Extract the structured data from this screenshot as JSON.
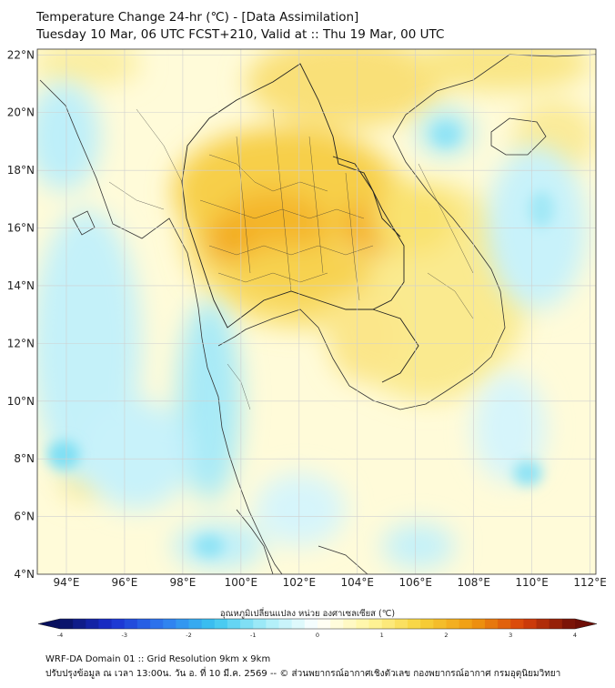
{
  "title_line1": "Temperature Change 24-hr (℃) - [Data Assimilation]",
  "title_line2": "Tuesday 10 Mar, 06 UTC FCST+210, Valid at :: Thu 19 Mar, 00 UTC",
  "map": {
    "lon_range": [
      93,
      112.2
    ],
    "lat_range": [
      4,
      22.2
    ],
    "lat_ticks": [
      "22°N",
      "20°N",
      "18°N",
      "16°N",
      "14°N",
      "12°N",
      "10°N",
      "8°N",
      "6°N",
      "4°N"
    ],
    "lat_values": [
      22,
      20,
      18,
      16,
      14,
      12,
      10,
      8,
      6,
      4
    ],
    "lon_ticks": [
      "94°E",
      "96°E",
      "98°E",
      "100°E",
      "102°E",
      "104°E",
      "106°E",
      "108°E",
      "110°E",
      "112°E"
    ],
    "lon_values": [
      94,
      96,
      98,
      100,
      102,
      104,
      106,
      108,
      110,
      112
    ],
    "gridlines": true,
    "warm_color": "#f7c21a",
    "cool_color": "#4fd3f0"
  },
  "colorbar": {
    "title": "อุณหภูมิเปลี่ยนแปลง หน่วย องศาเซลเซียส (℃)",
    "min": -4,
    "max": 4,
    "tick_labels": [
      "-4",
      "-3",
      "-2",
      "-1",
      "0",
      "1",
      "2",
      "3",
      "4"
    ],
    "colors": [
      "#08105e",
      "#1a2fd0",
      "#2e7bf0",
      "#3cc6f0",
      "#a8eef8",
      "#ffffff",
      "#fff6a0",
      "#f7d23a",
      "#f09a10",
      "#d8400a",
      "#6e0e06"
    ]
  },
  "footer_line1": "WRF-DA Domain 01 :: Grid Resolution 9km x 9km",
  "footer_line2": "ปรับปรุงข้อมูล ณ เวลา 13:00น. วัน อ. ที่ 10 มี.ค. 2569 -- © ส่วนพยากรณ์อากาศเชิงตัวเลข กองพยากรณ์อากาศ กรมอุตุนิยมวิทยา"
}
